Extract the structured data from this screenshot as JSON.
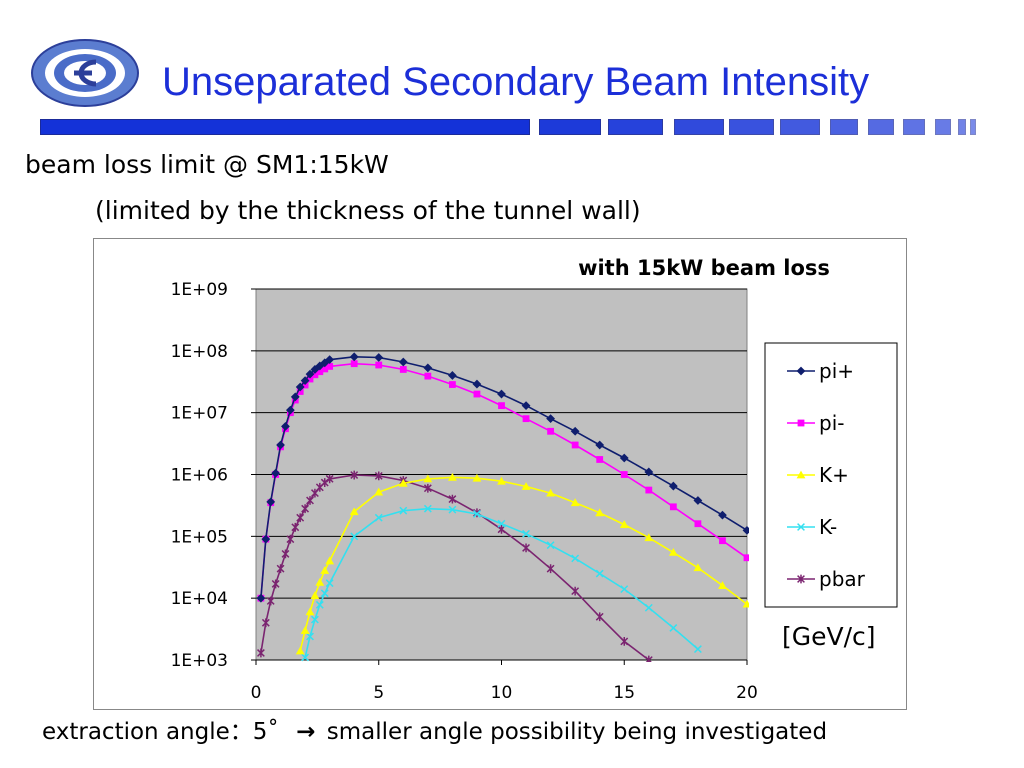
{
  "slide": {
    "title": "Unseparated Secondary Beam Intensity",
    "line1": "beam loss limit @ SM1:15kW",
    "line2": "(limited by the thickness of the tunnel wall)",
    "unit_label": "[GeV/c]",
    "footer": {
      "left": "extraction angle：5˚",
      "arrow": "→",
      "right": "smaller angle possibility being investigated"
    },
    "colors": {
      "title": "#1c2fd8",
      "bar_fill": "#1432d8",
      "bar_border": "#1a2a9a"
    },
    "logo_icon": "lab-logo-icon"
  },
  "chart_data": {
    "type": "line",
    "title": "with 15kW beam loss",
    "xlabel": "",
    "ylabel": "",
    "xlim": [
      0,
      20
    ],
    "ylim": [
      1000,
      1000000000
    ],
    "yscale": "log",
    "x_ticks": [
      0,
      5,
      10,
      15,
      20
    ],
    "y_tick_values": [
      1000,
      10000,
      100000,
      1000000,
      10000000,
      100000000,
      1000000000
    ],
    "y_tick_labels": [
      "1E+03",
      "1E+04",
      "1E+05",
      "1E+06",
      "1E+07",
      "1E+08",
      "1E+09"
    ],
    "grid": "horizontal",
    "plot_background": "#c0c0c0",
    "legend_position": "right",
    "series": [
      {
        "name": "pi+",
        "color": "#0f1e6e",
        "marker": "diamond",
        "x": [
          0.2,
          0.4,
          0.6,
          0.8,
          1.0,
          1.2,
          1.4,
          1.6,
          1.8,
          2.0,
          2.2,
          2.4,
          2.6,
          2.8,
          3.0,
          4,
          5,
          6,
          7,
          8,
          9,
          10,
          11,
          12,
          13,
          14,
          15,
          16,
          17,
          18,
          19,
          20
        ],
        "y": [
          10000,
          90000,
          360000,
          1050000,
          3000000,
          6000000,
          11000000,
          18000000,
          26000000,
          33000000,
          42000000,
          50000000,
          57000000,
          64000000,
          72000000,
          80000000,
          78000000,
          66000000,
          53000000,
          40000000,
          29000000,
          20000000,
          13000000,
          8000000,
          5000000,
          3000000,
          1850000,
          1100000,
          650000,
          380000,
          220000,
          125000
        ]
      },
      {
        "name": "pi-",
        "color": "#ff00ff",
        "marker": "square",
        "x": [
          0.2,
          0.4,
          0.6,
          0.8,
          1.0,
          1.2,
          1.4,
          1.6,
          1.8,
          2.0,
          2.2,
          2.4,
          2.6,
          2.8,
          3.0,
          4,
          5,
          6,
          7,
          8,
          9,
          10,
          11,
          12,
          13,
          14,
          15,
          16,
          17,
          18,
          19,
          20
        ],
        "y": [
          10000,
          90000,
          350000,
          1000000,
          2800000,
          5500000,
          10000000,
          16000000,
          22000000,
          28000000,
          35000000,
          41000000,
          46000000,
          51000000,
          56000000,
          62000000,
          59000000,
          50000000,
          39000000,
          28500000,
          20000000,
          13000000,
          8000000,
          5000000,
          3000000,
          1750000,
          1000000,
          560000,
          300000,
          160000,
          85000,
          45000
        ]
      },
      {
        "name": "K+",
        "color": "#ffff00",
        "marker": "triangle",
        "x": [
          1.8,
          2.0,
          2.2,
          2.4,
          2.6,
          2.8,
          3.0,
          4,
          5,
          6,
          7,
          8,
          9,
          10,
          11,
          12,
          13,
          14,
          15,
          16,
          17,
          18,
          19,
          20
        ],
        "y": [
          1400,
          3000,
          6000,
          11000,
          18000,
          28000,
          40000,
          250000,
          520000,
          720000,
          850000,
          900000,
          870000,
          780000,
          640000,
          500000,
          350000,
          240000,
          155000,
          95000,
          55000,
          31000,
          16000,
          8000
        ]
      },
      {
        "name": "K-",
        "color": "#33e0f0",
        "marker": "x",
        "x": [
          2.0,
          2.2,
          2.4,
          2.6,
          2.8,
          3.0,
          4,
          5,
          6,
          7,
          8,
          9,
          10,
          11,
          12,
          13,
          14,
          15,
          16,
          17,
          18
        ],
        "y": [
          1100,
          2400,
          4500,
          7800,
          12000,
          17500,
          100000,
          200000,
          260000,
          280000,
          270000,
          230000,
          160000,
          110000,
          72000,
          44000,
          25000,
          14000,
          7000,
          3300,
          1500
        ]
      },
      {
        "name": "pbar",
        "color": "#7b2470",
        "marker": "star",
        "x": [
          0.2,
          0.4,
          0.6,
          0.8,
          1.0,
          1.2,
          1.4,
          1.6,
          1.8,
          2.0,
          2.2,
          2.4,
          2.6,
          2.8,
          3.0,
          4,
          5,
          6,
          7,
          8,
          9,
          10,
          11,
          12,
          13,
          14,
          15,
          16
        ],
        "y": [
          1300,
          4000,
          9000,
          17000,
          30000,
          52000,
          90000,
          140000,
          200000,
          280000,
          380000,
          500000,
          620000,
          740000,
          850000,
          980000,
          950000,
          800000,
          600000,
          400000,
          240000,
          130000,
          65000,
          30000,
          13000,
          5000,
          2000,
          1000
        ]
      }
    ]
  }
}
